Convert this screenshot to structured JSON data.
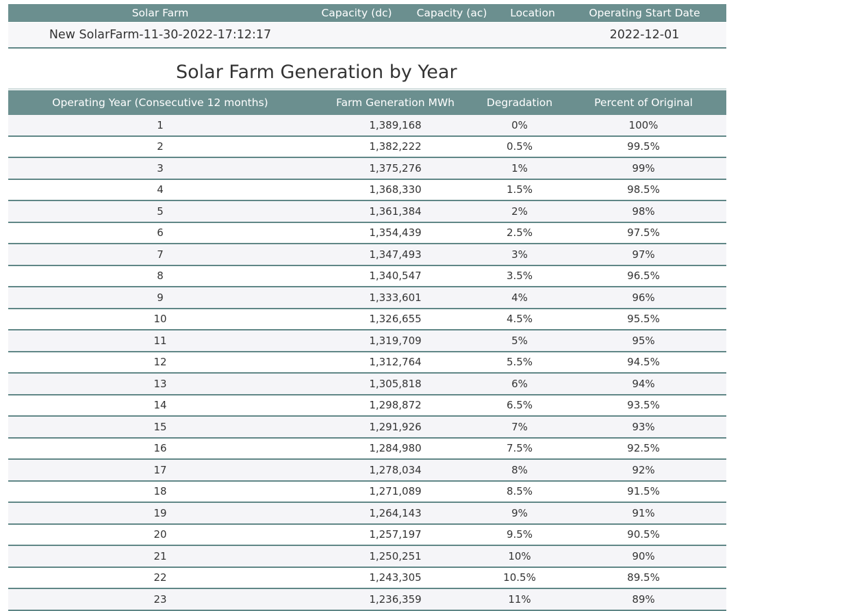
{
  "farm": {
    "headers": [
      "Solar Farm",
      "Capacity (dc)",
      "Capacity (ac)",
      "Location",
      "Operating Start Date"
    ],
    "row": [
      "New SolarFarm-11-30-2022-17:12:17",
      "",
      "",
      "",
      "2022-12-01"
    ]
  },
  "generation": {
    "title": "Solar Farm Generation by Year",
    "headers": [
      "Operating Year (Consecutive 12 months)",
      "Farm Generation MWh",
      "Degradation",
      "Percent of Original"
    ],
    "rows": [
      [
        "1",
        "1,389,168",
        "0%",
        "100%"
      ],
      [
        "2",
        "1,382,222",
        "0.5%",
        "99.5%"
      ],
      [
        "3",
        "1,375,276",
        "1%",
        "99%"
      ],
      [
        "4",
        "1,368,330",
        "1.5%",
        "98.5%"
      ],
      [
        "5",
        "1,361,384",
        "2%",
        "98%"
      ],
      [
        "6",
        "1,354,439",
        "2.5%",
        "97.5%"
      ],
      [
        "7",
        "1,347,493",
        "3%",
        "97%"
      ],
      [
        "8",
        "1,340,547",
        "3.5%",
        "96.5%"
      ],
      [
        "9",
        "1,333,601",
        "4%",
        "96%"
      ],
      [
        "10",
        "1,326,655",
        "4.5%",
        "95.5%"
      ],
      [
        "11",
        "1,319,709",
        "5%",
        "95%"
      ],
      [
        "12",
        "1,312,764",
        "5.5%",
        "94.5%"
      ],
      [
        "13",
        "1,305,818",
        "6%",
        "94%"
      ],
      [
        "14",
        "1,298,872",
        "6.5%",
        "93.5%"
      ],
      [
        "15",
        "1,291,926",
        "7%",
        "93%"
      ],
      [
        "16",
        "1,284,980",
        "7.5%",
        "92.5%"
      ],
      [
        "17",
        "1,278,034",
        "8%",
        "92%"
      ],
      [
        "18",
        "1,271,089",
        "8.5%",
        "91.5%"
      ],
      [
        "19",
        "1,264,143",
        "9%",
        "91%"
      ],
      [
        "20",
        "1,257,197",
        "9.5%",
        "90.5%"
      ],
      [
        "21",
        "1,250,251",
        "10%",
        "90%"
      ],
      [
        "22",
        "1,243,305",
        "10.5%",
        "89.5%"
      ],
      [
        "23",
        "1,236,359",
        "11%",
        "89%"
      ]
    ]
  },
  "colors": {
    "header_bg": "#6b8f8f",
    "row_border": "#5f8686",
    "stripe": "#f5f5f8"
  }
}
